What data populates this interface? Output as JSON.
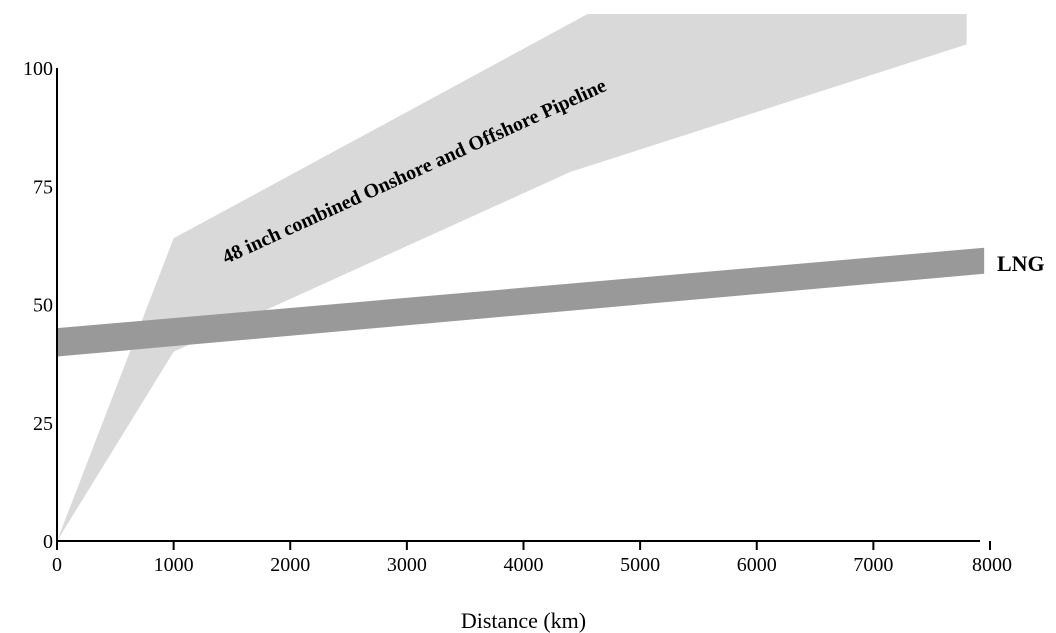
{
  "chart_data": {
    "type": "area",
    "title": "",
    "xlabel": "Distance (km)",
    "ylabel": "",
    "xlim": [
      0,
      8000
    ],
    "ylim": [
      0,
      100
    ],
    "x_ticks": [
      "0",
      "1000",
      "2000",
      "3000",
      "4000",
      "5000",
      "6000",
      "7000",
      "8000"
    ],
    "y_ticks": [
      "0",
      "25",
      "50",
      "75",
      "100"
    ],
    "grid": false,
    "legend": "none",
    "series": [
      {
        "name": "48 inch combined Onshore and Offshore Pipeline",
        "color": "#d9d9d9",
        "upper": [
          [
            0,
            0
          ],
          [
            1000,
            64
          ],
          [
            4550,
            113
          ],
          [
            7800,
            114
          ]
        ],
        "lower": [
          [
            0,
            0
          ],
          [
            1000,
            40
          ],
          [
            4400,
            78
          ],
          [
            7800,
            105
          ]
        ]
      },
      {
        "name": "LNG",
        "color": "#999999",
        "upper": [
          [
            0,
            45
          ],
          [
            7950,
            62
          ]
        ],
        "lower": [
          [
            0,
            39
          ],
          [
            7950,
            56.5
          ]
        ]
      }
    ]
  }
}
